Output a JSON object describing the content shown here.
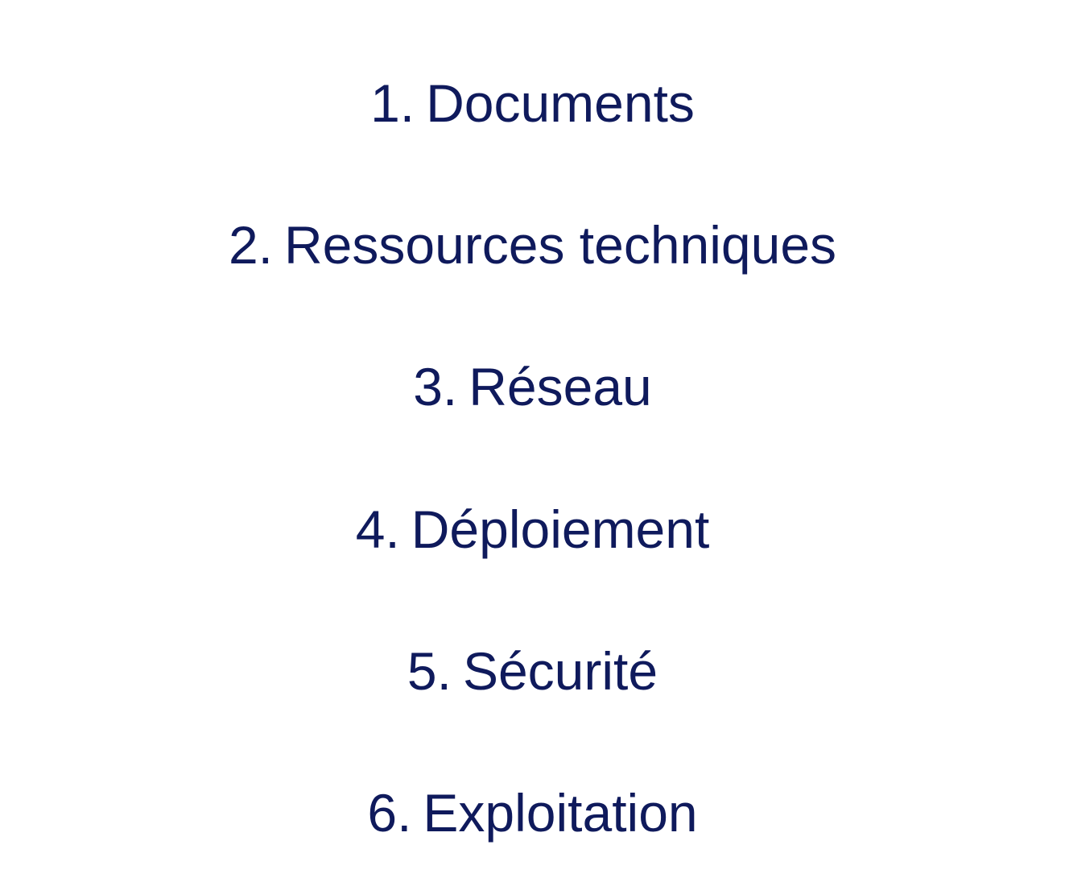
{
  "menu": {
    "items": [
      {
        "number": "1.",
        "label": "Documents"
      },
      {
        "number": "2.",
        "label": "Ressources techniques"
      },
      {
        "number": "3.",
        "label": "Réseau"
      },
      {
        "number": "4.",
        "label": "Déploiement"
      },
      {
        "number": "5.",
        "label": "Sécurité"
      },
      {
        "number": "6.",
        "label": "Exploitation"
      }
    ]
  },
  "colors": {
    "text": "#0f1a5c",
    "background": "#ffffff"
  }
}
